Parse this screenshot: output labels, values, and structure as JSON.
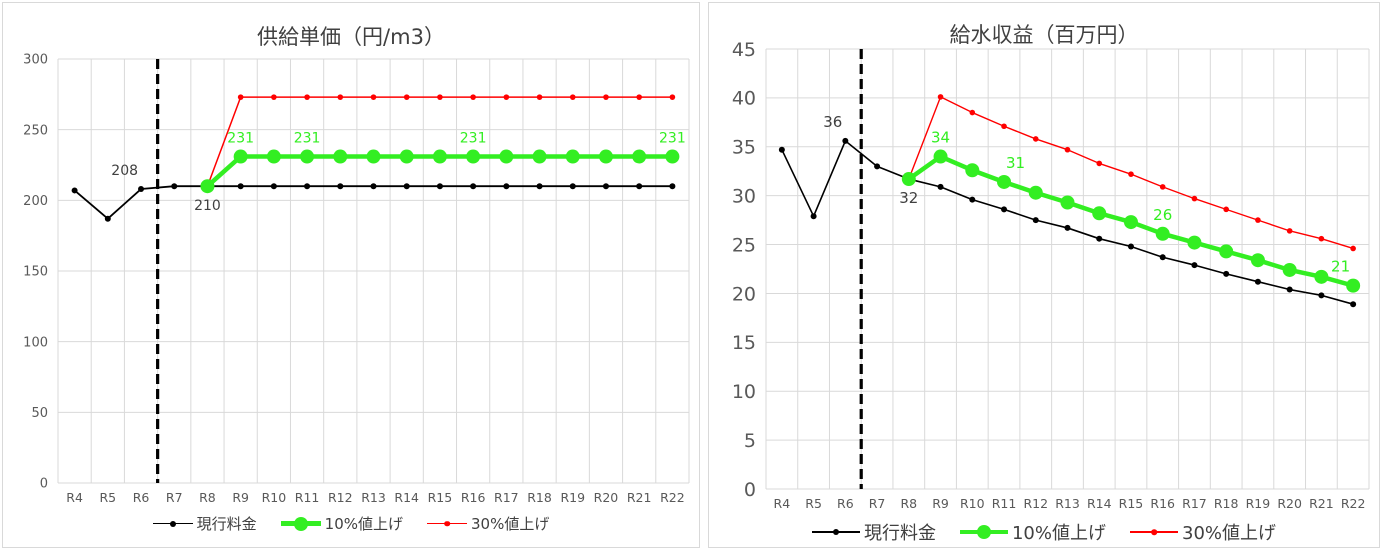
{
  "chart_data": [
    {
      "type": "line",
      "title": "供給単価（円/m3）",
      "xlabel": "",
      "ylabel": "",
      "categories": [
        "R4",
        "R5",
        "R6",
        "R7",
        "R8",
        "R9",
        "R10",
        "R11",
        "R12",
        "R13",
        "R14",
        "R15",
        "R16",
        "R17",
        "R18",
        "R19",
        "R20",
        "R21",
        "R22"
      ],
      "ylim": [
        0,
        300
      ],
      "yticks": [
        0,
        50,
        100,
        150,
        200,
        250,
        300
      ],
      "grid": true,
      "legend_position": "bottom",
      "divider_between": [
        "R6",
        "R7"
      ],
      "series": [
        {
          "name": "現行料金",
          "color": "#000000",
          "values": [
            207,
            187,
            208,
            210,
            210,
            210,
            210,
            210,
            210,
            210,
            210,
            210,
            210,
            210,
            210,
            210,
            210,
            210,
            210
          ],
          "labels": [
            {
              "index": 2,
              "text": "208",
              "pos": "above-left"
            },
            {
              "index": 4,
              "text": "210",
              "pos": "below"
            }
          ]
        },
        {
          "name": "10%値上げ",
          "color": "#33ee22",
          "values": [
            null,
            null,
            null,
            null,
            210,
            231,
            231,
            231,
            231,
            231,
            231,
            231,
            231,
            231,
            231,
            231,
            231,
            231,
            231
          ],
          "labels": [
            {
              "index": 5,
              "text": "231",
              "pos": "above"
            },
            {
              "index": 7,
              "text": "231",
              "pos": "above"
            },
            {
              "index": 12,
              "text": "231",
              "pos": "above"
            },
            {
              "index": 18,
              "text": "231",
              "pos": "above"
            }
          ]
        },
        {
          "name": "30%値上げ",
          "color": "#ff0000",
          "values": [
            null,
            null,
            null,
            null,
            210,
            273,
            273,
            273,
            273,
            273,
            273,
            273,
            273,
            273,
            273,
            273,
            273,
            273,
            273
          ],
          "labels": []
        }
      ]
    },
    {
      "type": "line",
      "title": "給水収益（百万円）",
      "xlabel": "",
      "ylabel": "",
      "categories": [
        "R4",
        "R5",
        "R6",
        "R7",
        "R8",
        "R9",
        "R10",
        "R11",
        "R12",
        "R13",
        "R14",
        "R15",
        "R16",
        "R17",
        "R18",
        "R19",
        "R20",
        "R21",
        "R22"
      ],
      "ylim": [
        0,
        45
      ],
      "yticks": [
        0,
        5,
        10,
        15,
        20,
        25,
        30,
        35,
        40,
        45
      ],
      "grid": true,
      "legend_position": "bottom",
      "divider_between": [
        "R6",
        "R7"
      ],
      "series": [
        {
          "name": "現行料金",
          "color": "#000000",
          "values": [
            34.7,
            27.9,
            35.6,
            33.0,
            31.7,
            30.9,
            29.6,
            28.6,
            27.5,
            26.7,
            25.6,
            24.8,
            23.7,
            22.9,
            22.0,
            21.2,
            20.4,
            19.8,
            18.9
          ],
          "labels": [
            {
              "index": 2,
              "text": "36",
              "pos": "above-left"
            },
            {
              "index": 4,
              "text": "32",
              "pos": "below"
            }
          ]
        },
        {
          "name": "10%値上げ",
          "color": "#33ee22",
          "values": [
            null,
            null,
            null,
            null,
            31.7,
            34.0,
            32.6,
            31.4,
            30.3,
            29.3,
            28.2,
            27.3,
            26.1,
            25.2,
            24.3,
            23.4,
            22.4,
            21.7,
            20.8
          ],
          "labels": [
            {
              "index": 5,
              "text": "34",
              "pos": "above"
            },
            {
              "index": 7,
              "text": "31",
              "pos": "above-right"
            },
            {
              "index": 12,
              "text": "26",
              "pos": "above"
            },
            {
              "index": 18,
              "text": "21",
              "pos": "above-left"
            }
          ]
        },
        {
          "name": "30%値上げ",
          "color": "#ff0000",
          "values": [
            null,
            null,
            null,
            null,
            31.7,
            40.1,
            38.5,
            37.1,
            35.8,
            34.7,
            33.3,
            32.2,
            30.9,
            29.7,
            28.6,
            27.5,
            26.4,
            25.6,
            24.6
          ],
          "labels": []
        }
      ]
    }
  ]
}
